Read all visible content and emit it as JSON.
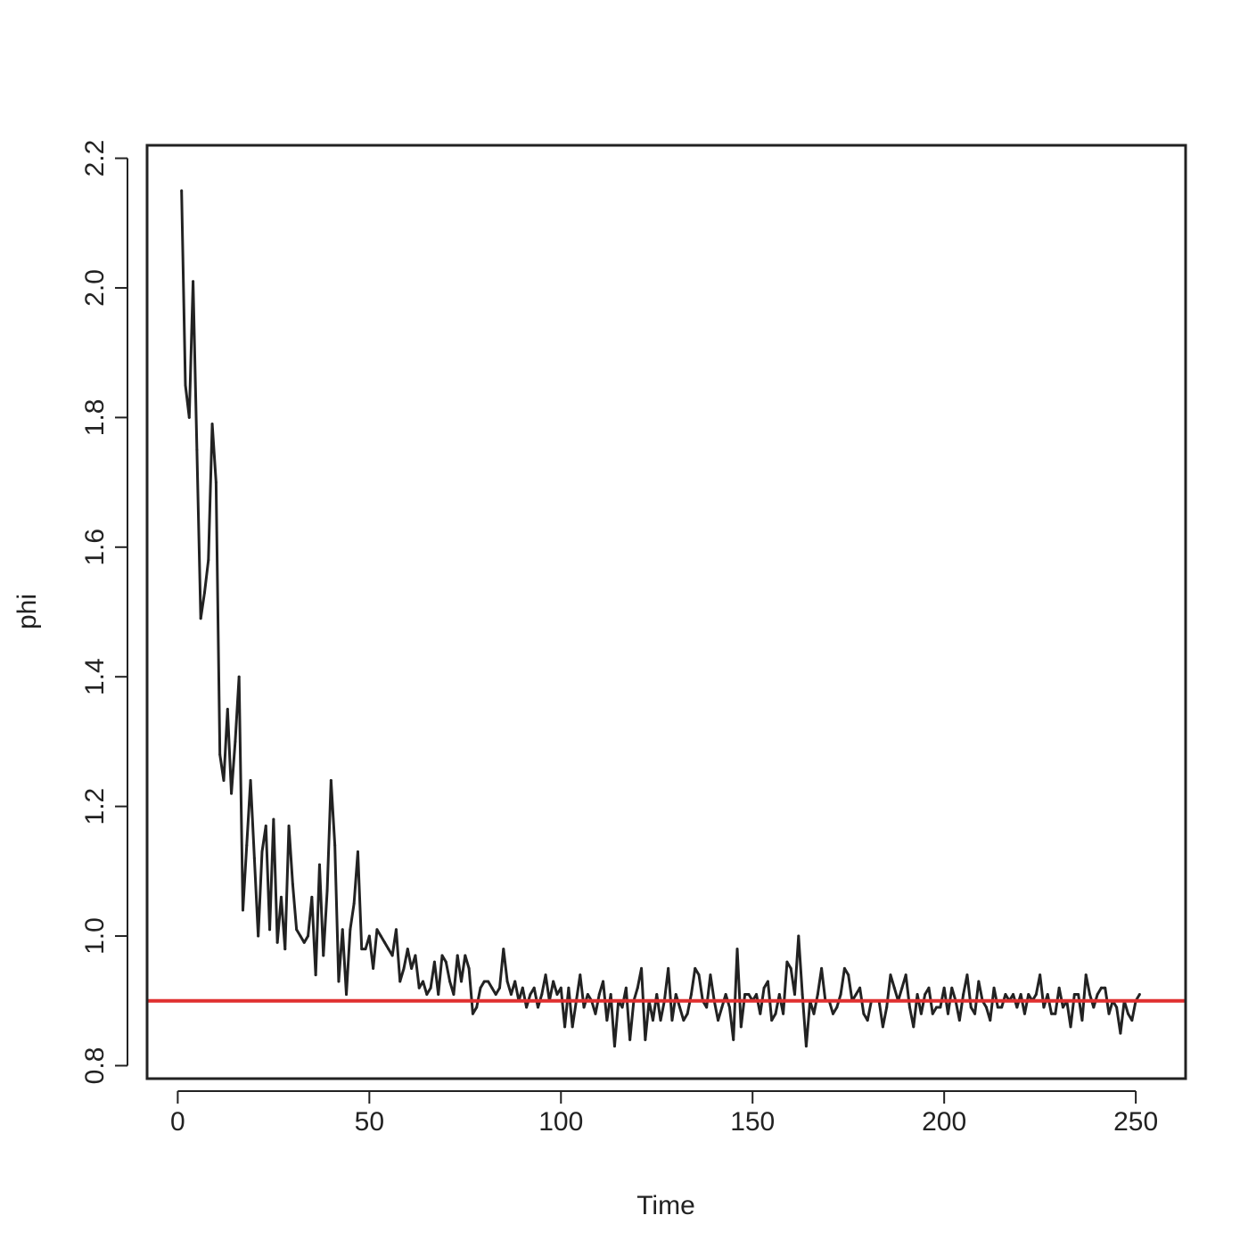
{
  "chart_data": {
    "type": "line",
    "title": "",
    "xlabel": "Time",
    "ylabel": "phi",
    "xlim": [
      -8,
      263
    ],
    "ylim": [
      0.78,
      2.22
    ],
    "xticks": [
      0,
      50,
      100,
      150,
      200,
      250
    ],
    "yticks": [
      0.8,
      1.0,
      1.2,
      1.4,
      1.6,
      1.8,
      2.0,
      2.2
    ],
    "xtick_labels": [
      "0",
      "50",
      "100",
      "150",
      "200",
      "250"
    ],
    "ytick_labels": [
      "0.8",
      "1.0",
      "1.2",
      "1.4",
      "1.6",
      "1.8",
      "2.0",
      "2.2"
    ],
    "grid": false,
    "line_color": "#222222",
    "reference_color": "#e03030",
    "reference_line": {
      "y": 0.9
    },
    "series": [
      {
        "x_start": 1,
        "values": [
          2.15,
          1.85,
          1.8,
          2.01,
          1.75,
          1.49,
          1.53,
          1.58,
          1.79,
          1.7,
          1.28,
          1.24,
          1.35,
          1.22,
          1.3,
          1.4,
          1.04,
          1.14,
          1.24,
          1.12,
          1.0,
          1.13,
          1.17,
          1.01,
          1.18,
          0.99,
          1.06,
          0.98,
          1.17,
          1.08,
          1.01,
          1.0,
          0.99,
          1.0,
          1.06,
          0.94,
          1.11,
          0.97,
          1.07,
          1.24,
          1.14,
          0.93,
          1.01,
          0.91,
          1.01,
          1.05,
          1.13,
          0.98,
          0.98,
          1.0,
          0.95,
          1.01,
          1.0,
          0.99,
          0.98,
          0.97,
          1.01,
          0.93,
          0.95,
          0.98,
          0.95,
          0.97,
          0.92,
          0.93,
          0.91,
          0.92,
          0.96,
          0.91,
          0.97,
          0.96,
          0.93,
          0.91,
          0.97,
          0.93,
          0.97,
          0.95,
          0.88,
          0.89,
          0.92,
          0.93,
          0.93,
          0.92,
          0.91,
          0.92,
          0.98,
          0.93,
          0.91,
          0.93,
          0.9,
          0.92,
          0.89,
          0.91,
          0.92,
          0.89,
          0.91,
          0.94,
          0.9,
          0.93,
          0.91,
          0.92,
          0.86,
          0.92,
          0.86,
          0.9,
          0.94,
          0.89,
          0.91,
          0.9,
          0.88,
          0.91,
          0.93,
          0.87,
          0.91,
          0.83,
          0.9,
          0.89,
          0.92,
          0.84,
          0.9,
          0.92,
          0.95,
          0.84,
          0.9,
          0.87,
          0.91,
          0.87,
          0.9,
          0.95,
          0.87,
          0.91,
          0.89,
          0.87,
          0.88,
          0.91,
          0.95,
          0.94,
          0.9,
          0.89,
          0.94,
          0.9,
          0.87,
          0.89,
          0.91,
          0.89,
          0.84,
          0.98,
          0.86,
          0.91,
          0.91,
          0.9,
          0.91,
          0.88,
          0.92,
          0.93,
          0.87,
          0.88,
          0.91,
          0.88,
          0.96,
          0.95,
          0.91,
          1.0,
          0.91,
          0.83,
          0.9,
          0.88,
          0.91,
          0.95,
          0.9,
          0.9,
          0.88,
          0.89,
          0.91,
          0.95,
          0.94,
          0.9,
          0.91,
          0.92,
          0.88,
          0.87,
          0.9,
          0.9,
          0.9,
          0.86,
          0.89,
          0.94,
          0.92,
          0.9,
          0.92,
          0.94,
          0.89,
          0.86,
          0.91,
          0.88,
          0.91,
          0.92,
          0.88,
          0.89,
          0.89,
          0.92,
          0.88,
          0.92,
          0.9,
          0.87,
          0.91,
          0.94,
          0.89,
          0.88,
          0.93,
          0.9,
          0.89,
          0.87,
          0.92,
          0.89,
          0.89,
          0.91,
          0.9,
          0.91,
          0.89,
          0.91,
          0.88,
          0.91,
          0.9,
          0.91,
          0.94,
          0.89,
          0.91,
          0.88,
          0.88,
          0.92,
          0.89,
          0.9,
          0.86,
          0.91,
          0.91,
          0.87,
          0.94,
          0.91,
          0.89,
          0.91,
          0.92,
          0.92,
          0.88,
          0.9,
          0.89,
          0.85,
          0.9,
          0.88,
          0.87,
          0.9,
          0.91
        ]
      }
    ]
  }
}
